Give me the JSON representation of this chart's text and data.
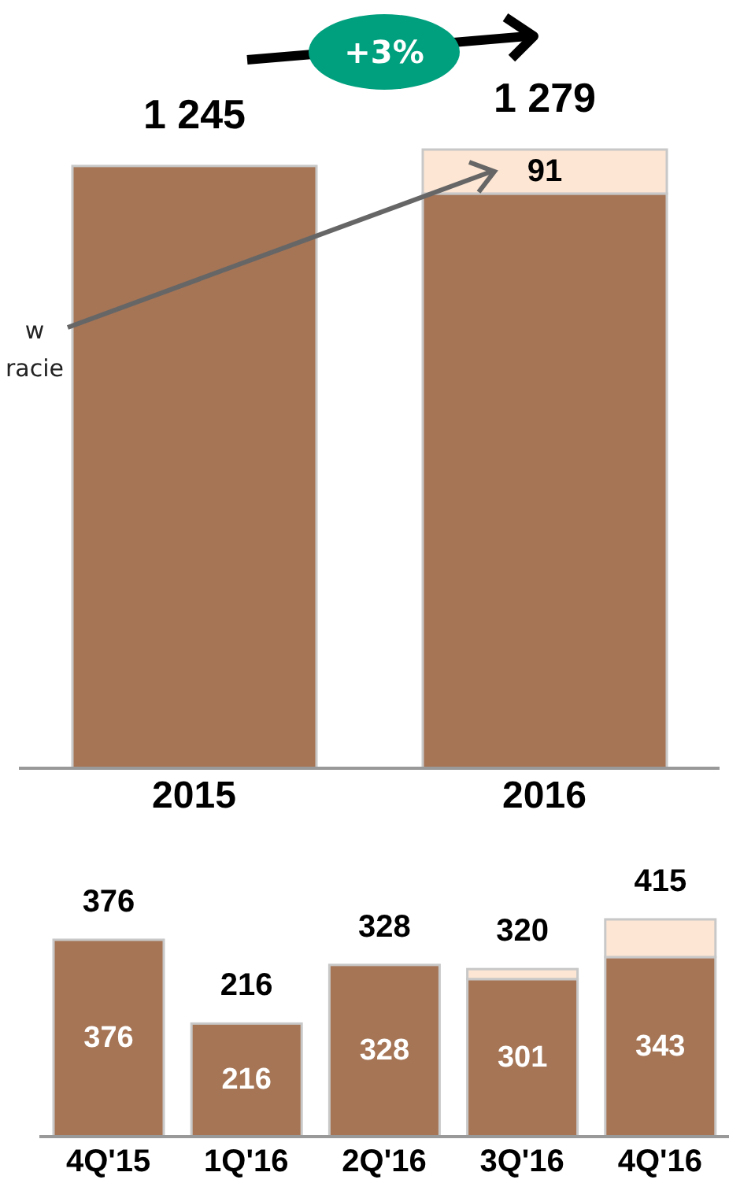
{
  "chart_data": [
    {
      "type": "bar",
      "stacked": true,
      "categories": [
        "2015",
        "2016"
      ],
      "series": [
        {
          "color": "#a57556",
          "values": [
            1245,
            1188
          ]
        },
        {
          "color": "#fde6d3",
          "values": [
            null,
            91
          ],
          "value_labels": [
            null,
            "91"
          ]
        }
      ],
      "totals": [
        "1 245",
        "1 279"
      ],
      "annotations": [
        "+3%",
        "w racie"
      ]
    },
    {
      "type": "bar",
      "stacked": true,
      "categories": [
        "4Q'15",
        "1Q'16",
        "2Q'16",
        "3Q'16",
        "4Q'16"
      ],
      "series": [
        {
          "color": "#a57556",
          "values": [
            376,
            216,
            328,
            301,
            343
          ],
          "value_labels": [
            "376",
            "216",
            "328",
            "301",
            "343"
          ]
        },
        {
          "color": "#fde6d3",
          "values": [
            null,
            null,
            null,
            19,
            72
          ]
        }
      ],
      "totals": [
        "376",
        "216",
        "328",
        "320",
        "415"
      ]
    }
  ]
}
